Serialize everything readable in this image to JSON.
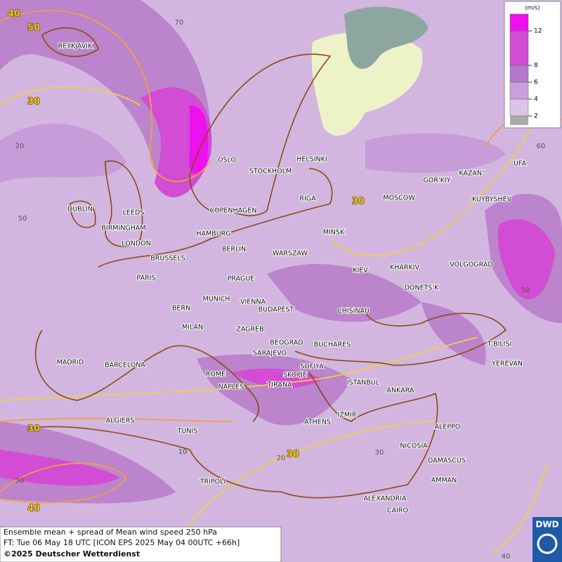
{
  "legend": {
    "unit": "(m/s)",
    "ticks": [
      2,
      4,
      6,
      8,
      12
    ],
    "colors": [
      "#dcc4e6",
      "#c9a0d9",
      "#b777c9",
      "#d24cd4",
      "#ee10ee"
    ]
  },
  "cities": [
    "REYKJAVIK",
    "OSLO",
    "STOCKHOLM",
    "HELSINKI",
    "DUBLIN",
    "LEEDS",
    "BIRMINGHAM",
    "LONDON",
    "COPENHAGEN",
    "RIGA",
    "HAMBURG",
    "BERLIN",
    "MINSK",
    "MOSCOW",
    "GOR'KIY",
    "KAZAN'",
    "KUYBYSHEV",
    "UFA",
    "BRUSSELS",
    "WARSZAW",
    "KIEV",
    "KHARKIV",
    "VOLGOGRAD",
    "PARIS",
    "PRAGUE",
    "DONETS'K",
    "BERN",
    "MUNICH",
    "VIENNA",
    "BUDAPEST",
    "CHISINAU",
    "MILAN",
    "ZAGREB",
    "BEOGRAD",
    "BUCHARES",
    "T'BILISI",
    "SARAJEVO",
    "MADRID",
    "BARCELONA",
    "ROME",
    "SOFIYA",
    "SKOPJE",
    "YEREVAN",
    "NAPLES",
    "TIRANA",
    "ISTANBUL",
    "ANKARA",
    "ALGIERS",
    "IZMIR",
    "ATHENS",
    "ALEPPO",
    "TUNIS",
    "NICOSIA",
    "DAMASCUS",
    "AMMAN",
    "TRIPOLI",
    "ALEXANDRIA",
    "CAIRO"
  ],
  "contour_labels": [
    40,
    50,
    30,
    30,
    30,
    30,
    40
  ],
  "grid_labels": [
    70,
    20,
    50,
    60,
    50,
    40,
    30,
    20,
    10,
    30
  ],
  "footer": {
    "line1": "Ensemble mean + spread of Mean wind speed 250 hPa",
    "line2": "FT: Tue 06 May 18 UTC [ICON EPS 2025 May 04 00UTC +66h]",
    "line3": "©2025 Deutscher Wetterdienst"
  },
  "logo": "DWD"
}
